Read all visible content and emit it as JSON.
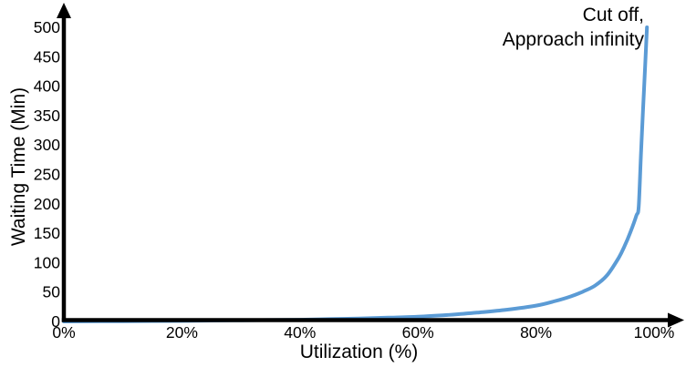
{
  "chart_data": {
    "type": "line",
    "title": "",
    "xlabel": "Utilization (%)",
    "ylabel": "Waiting Time (Min)",
    "annotation": "Cut off,\nApproach infinity",
    "xlim": [
      0,
      100
    ],
    "ylim": [
      0,
      500
    ],
    "grid": false,
    "legend": "none",
    "colors": {
      "curve": "#5B9BD5",
      "axis": "#000000",
      "text": "#000000",
      "background": "#FFFFFF"
    },
    "xticks": [
      {
        "value": 0,
        "label": "0%"
      },
      {
        "value": 20,
        "label": "20%"
      },
      {
        "value": 40,
        "label": "40%"
      },
      {
        "value": 60,
        "label": "60%"
      },
      {
        "value": 80,
        "label": "80%"
      },
      {
        "value": 100,
        "label": "100%"
      }
    ],
    "yticks": [
      {
        "value": 0,
        "label": "0"
      },
      {
        "value": 50,
        "label": "50"
      },
      {
        "value": 100,
        "label": "100"
      },
      {
        "value": 150,
        "label": "150"
      },
      {
        "value": 200,
        "label": "200"
      },
      {
        "value": 250,
        "label": "250"
      },
      {
        "value": 300,
        "label": "300"
      },
      {
        "value": 350,
        "label": "350"
      },
      {
        "value": 400,
        "label": "400"
      },
      {
        "value": 450,
        "label": "450"
      },
      {
        "value": 500,
        "label": "500"
      }
    ],
    "series": [
      {
        "points": [
          [
            0,
            0
          ],
          [
            10,
            0.5
          ],
          [
            20,
            1
          ],
          [
            30,
            2
          ],
          [
            40,
            3
          ],
          [
            45,
            4
          ],
          [
            50,
            5
          ],
          [
            55,
            6.5
          ],
          [
            60,
            8
          ],
          [
            65,
            11
          ],
          [
            70,
            15
          ],
          [
            75,
            20
          ],
          [
            80,
            27
          ],
          [
            83,
            34
          ],
          [
            86,
            43
          ],
          [
            88,
            51
          ],
          [
            90,
            61
          ],
          [
            92,
            78
          ],
          [
            94,
            108
          ],
          [
            95,
            128
          ],
          [
            96,
            152
          ],
          [
            97,
            180
          ],
          [
            97.4,
            196
          ],
          [
            97.8,
            290
          ],
          [
            98.3,
            395
          ],
          [
            98.8,
            500
          ]
        ]
      }
    ]
  }
}
